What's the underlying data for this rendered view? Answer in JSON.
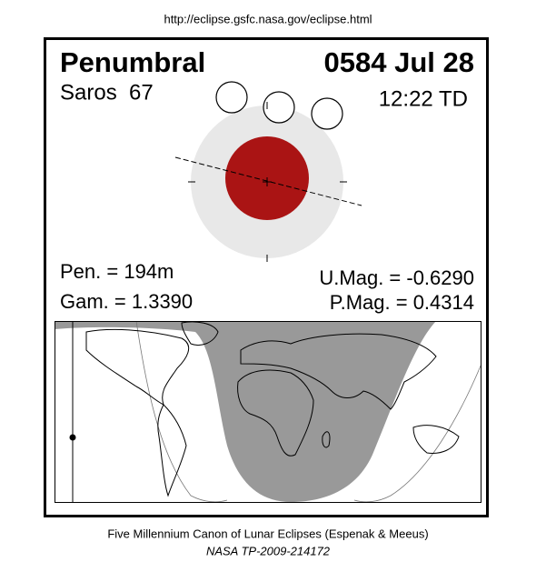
{
  "url": "http://eclipse.gsfc.nasa.gov/eclipse.html",
  "header": {
    "type": "Penumbral",
    "date": "0584 Jul 28",
    "saros": "Saros  67",
    "time": "12:22 TD"
  },
  "parameters": {
    "pen": "Pen. = 194m",
    "gam": "Gam. = 1.3390",
    "umag": "U.Mag. = -0.6290",
    "pmag": "P.Mag. = 0.4314"
  },
  "footer": {
    "canon": "Five Millennium Canon of Lunar Eclipses (Espenak & Meeus)",
    "report": "NASA TP-2009-214172"
  }
}
